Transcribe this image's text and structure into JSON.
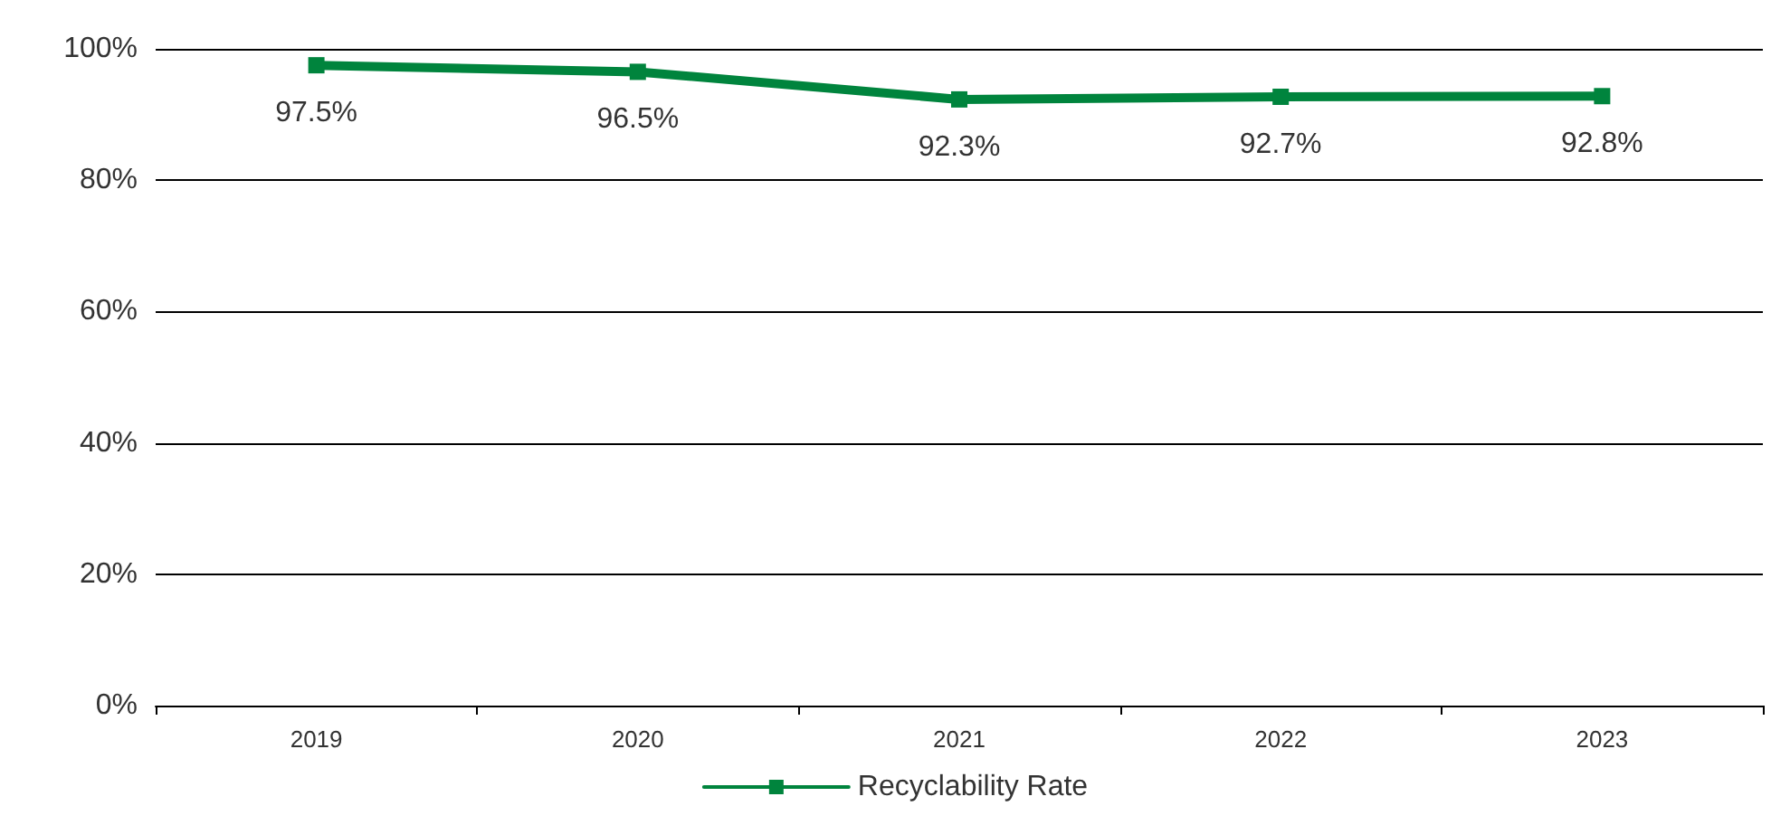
{
  "chart_data": {
    "type": "line",
    "categories": [
      "2019",
      "2020",
      "2021",
      "2022",
      "2023"
    ],
    "series": [
      {
        "name": "Recyclability Rate",
        "color": "#00843d",
        "values": [
          97.5,
          96.5,
          92.3,
          92.7,
          92.8
        ],
        "value_labels": [
          "97.5%",
          "96.5%",
          "92.3%",
          "92.7%",
          "92.8%"
        ]
      }
    ],
    "ylim": [
      0,
      100
    ],
    "yticks": [
      {
        "value": 0,
        "label": "0%"
      },
      {
        "value": 20,
        "label": "20%"
      },
      {
        "value": 40,
        "label": "40%"
      },
      {
        "value": 60,
        "label": "60%"
      },
      {
        "value": 80,
        "label": "80%"
      },
      {
        "value": 100,
        "label": "100%"
      }
    ],
    "grid": "y",
    "legend": "bottom",
    "marker": "square",
    "line_style": "solid"
  }
}
